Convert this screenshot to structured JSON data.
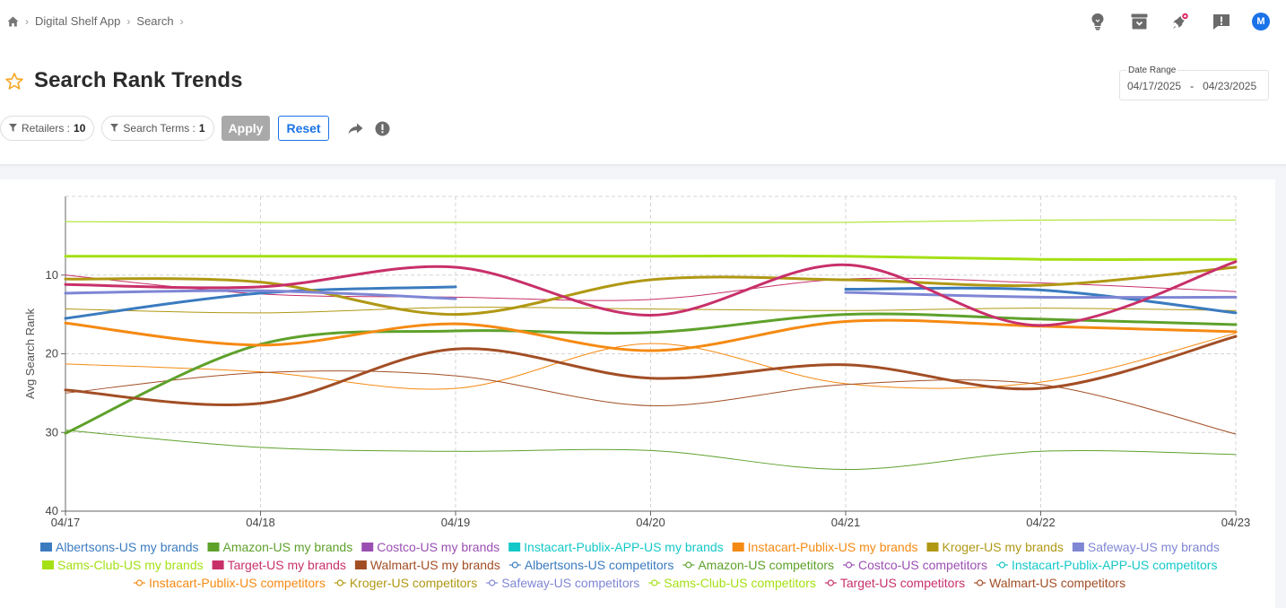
{
  "breadcrumb": {
    "items": [
      "Digital Shelf App",
      "Search"
    ]
  },
  "header": {
    "title": "Search Rank Trends",
    "avatar_initial": "M",
    "icons": [
      "lightbulb-icon",
      "archive-icon",
      "rocket-icon",
      "feedback-icon"
    ]
  },
  "date_range": {
    "label": "Date Range",
    "start": "04/17/2025",
    "separator": "-",
    "end": "04/23/2025"
  },
  "filters": {
    "retailers_label": "Retailers :",
    "retailers_count": "10",
    "search_terms_label": "Search Terms :",
    "search_terms_count": "1",
    "apply_label": "Apply",
    "reset_label": "Reset"
  },
  "colors": {
    "accent": "#1a73e8",
    "star": "#f5a623",
    "notification": "#e0245e"
  },
  "chart_data": {
    "type": "line",
    "title": "",
    "xlabel": "",
    "ylabel": "Avg Search Rank",
    "x": [
      "04/17",
      "04/18",
      "04/19",
      "04/20",
      "04/21",
      "04/22",
      "04/23"
    ],
    "ylim": [
      0,
      40
    ],
    "y_inverted": true,
    "yticks": [
      10,
      20,
      30,
      40
    ],
    "grid": true,
    "legend": "bottom",
    "series": [
      {
        "name": "Albertsons-US my brands",
        "color": "#3b7bbf",
        "kind": "brand",
        "values": [
          15.5,
          12.3,
          11.5,
          null,
          11.8,
          11.9,
          14.8
        ]
      },
      {
        "name": "Amazon-US my brands",
        "color": "#5ea12b",
        "kind": "brand",
        "values": [
          30.1,
          18.8,
          17.1,
          17.3,
          15.0,
          15.6,
          16.3
        ]
      },
      {
        "name": "Costco-US my brands",
        "color": "#9b4fb3",
        "kind": "brand",
        "values": [
          null,
          null,
          null,
          null,
          null,
          null,
          null
        ]
      },
      {
        "name": "Instacart-Publix-APP-US my brands",
        "color": "#14c8c8",
        "kind": "brand",
        "values": [
          null,
          null,
          null,
          null,
          null,
          null,
          null
        ]
      },
      {
        "name": "Instacart-Publix-US my brands",
        "color": "#f58a13",
        "kind": "brand",
        "values": [
          16.1,
          18.9,
          16.2,
          19.6,
          15.9,
          16.5,
          17.2
        ]
      },
      {
        "name": "Kroger-US my brands",
        "color": "#b09814",
        "kind": "brand",
        "values": [
          10.5,
          10.9,
          15.0,
          10.6,
          10.6,
          11.3,
          9.0
        ]
      },
      {
        "name": "Safeway-US my brands",
        "color": "#7f86d4",
        "kind": "brand",
        "values": [
          12.3,
          12.0,
          13.0,
          null,
          12.2,
          12.8,
          12.8
        ]
      },
      {
        "name": "Sams-Club-US my brands",
        "color": "#a4e014",
        "kind": "brand",
        "values": [
          7.6,
          7.6,
          7.6,
          7.6,
          7.6,
          8.0,
          8.0
        ]
      },
      {
        "name": "Target-US my brands",
        "color": "#c8306a",
        "kind": "brand",
        "values": [
          11.2,
          11.5,
          9.0,
          15.1,
          8.7,
          16.4,
          8.3
        ]
      },
      {
        "name": "Walmart-US my brands",
        "color": "#a24e25",
        "kind": "brand",
        "values": [
          24.6,
          26.3,
          19.4,
          23.1,
          21.4,
          24.4,
          17.8
        ]
      },
      {
        "name": "Albertsons-US competitors",
        "color": "#3b7bbf",
        "kind": "competitor",
        "values": [
          null,
          null,
          null,
          null,
          null,
          null,
          null
        ]
      },
      {
        "name": "Amazon-US competitors",
        "color": "#5ea12b",
        "kind": "competitor",
        "values": [
          29.7,
          31.9,
          32.4,
          32.3,
          34.7,
          32.4,
          32.8
        ]
      },
      {
        "name": "Costco-US competitors",
        "color": "#9b4fb3",
        "kind": "competitor",
        "values": [
          null,
          null,
          null,
          null,
          null,
          null,
          null
        ]
      },
      {
        "name": "Instacart-Publix-APP-US competitors",
        "color": "#14c8c8",
        "kind": "competitor",
        "values": [
          null,
          null,
          null,
          null,
          null,
          null,
          null
        ]
      },
      {
        "name": "Instacart-Publix-US competitors",
        "color": "#f58a13",
        "kind": "competitor",
        "values": [
          21.3,
          22.3,
          24.4,
          18.7,
          23.8,
          23.6,
          17.4
        ]
      },
      {
        "name": "Kroger-US competitors",
        "color": "#b09814",
        "kind": "competitor",
        "values": [
          14.3,
          14.8,
          14.1,
          14.3,
          14.5,
          14.2,
          14.5
        ]
      },
      {
        "name": "Safeway-US competitors",
        "color": "#7f86d4",
        "kind": "competitor",
        "values": [
          null,
          null,
          null,
          null,
          null,
          null,
          null
        ]
      },
      {
        "name": "Sams-Club-US competitors",
        "color": "#a4e014",
        "kind": "competitor",
        "values": [
          3.2,
          3.3,
          3.3,
          3.3,
          3.3,
          3.0,
          3.0
        ]
      },
      {
        "name": "Target-US competitors",
        "color": "#c8306a",
        "kind": "competitor",
        "values": [
          10.0,
          12.4,
          12.8,
          13.1,
          10.5,
          11.0,
          12.1
        ]
      },
      {
        "name": "Walmart-US competitors",
        "color": "#a24e25",
        "kind": "competitor",
        "values": [
          25.0,
          22.4,
          22.8,
          26.6,
          23.9,
          23.9,
          30.2
        ]
      }
    ]
  }
}
